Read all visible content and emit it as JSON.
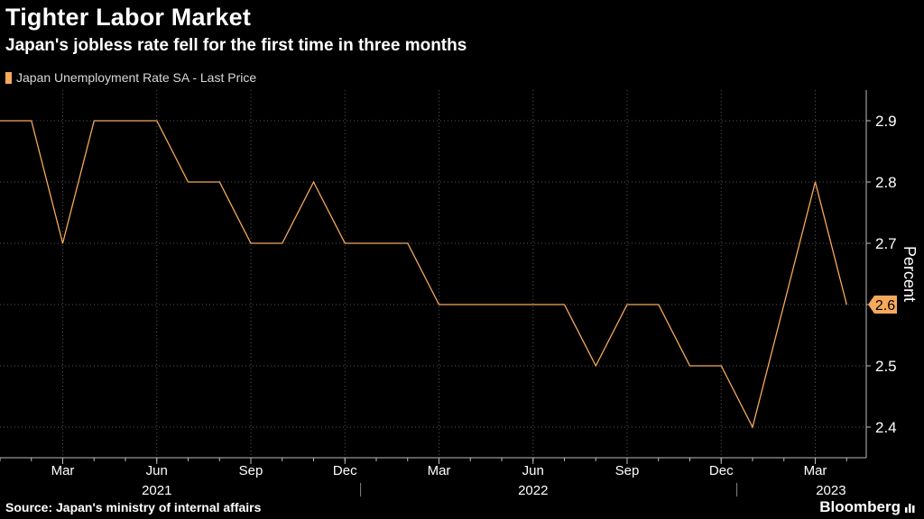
{
  "header": {
    "title": "Tighter Labor Market",
    "subtitle": "Japan's jobless rate fell for the first time in three months"
  },
  "footer": {
    "source": "Source: Japan's ministry of internal affairs",
    "brand": "Bloomberg"
  },
  "colors": {
    "background": "#000000",
    "series": "#f6a95b",
    "grid": "#555555",
    "text": "#ffffff"
  },
  "chart_data": {
    "type": "line",
    "title": "Tighter Labor Market",
    "subtitle": "Japan's jobless rate fell for the first time in three months",
    "ylabel": "Percent",
    "ylim": [
      2.35,
      2.95
    ],
    "yticks": [
      2.4,
      2.5,
      2.6,
      2.7,
      2.8,
      2.9
    ],
    "grid": true,
    "legend_position": "top-left",
    "month_ticks": [
      {
        "label": "Mar",
        "index": 2
      },
      {
        "label": "Jun",
        "index": 5
      },
      {
        "label": "Sep",
        "index": 8
      },
      {
        "label": "Dec",
        "index": 11
      },
      {
        "label": "Mar",
        "index": 14
      },
      {
        "label": "Jun",
        "index": 17
      },
      {
        "label": "Sep",
        "index": 20
      },
      {
        "label": "Dec",
        "index": 23
      },
      {
        "label": "Mar",
        "index": 26
      }
    ],
    "year_labels": [
      {
        "label": "2021",
        "index": 5
      },
      {
        "label": "2022",
        "index": 17
      },
      {
        "label": "2023",
        "index": 26.5
      }
    ],
    "x": [
      "2021-01",
      "2021-02",
      "2021-03",
      "2021-04",
      "2021-05",
      "2021-06",
      "2021-07",
      "2021-08",
      "2021-09",
      "2021-10",
      "2021-11",
      "2021-12",
      "2022-01",
      "2022-02",
      "2022-03",
      "2022-04",
      "2022-05",
      "2022-06",
      "2022-07",
      "2022-08",
      "2022-09",
      "2022-10",
      "2022-11",
      "2022-12",
      "2023-01",
      "2023-02",
      "2023-03",
      "2023-04"
    ],
    "series": [
      {
        "name": "Japan Unemployment Rate SA - Last Price",
        "values": [
          2.9,
          2.9,
          2.7,
          2.9,
          2.9,
          2.9,
          2.8,
          2.8,
          2.7,
          2.7,
          2.8,
          2.7,
          2.7,
          2.7,
          2.6,
          2.6,
          2.6,
          2.6,
          2.6,
          2.5,
          2.6,
          2.6,
          2.5,
          2.5,
          2.4,
          2.6,
          2.8,
          2.6
        ]
      }
    ],
    "last_value_label": "2.6"
  }
}
